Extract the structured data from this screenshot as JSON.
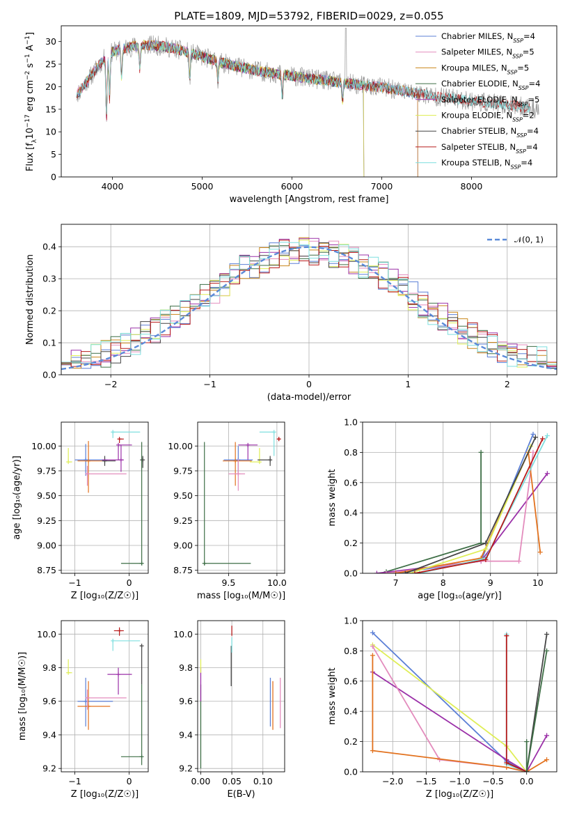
{
  "title": "PLATE=1809, MJD=53792, FIBERID=0029, z=0.055",
  "colors": {
    "Chabrier MILES": "#5b7fd6",
    "Salpeter MILES": "#e38cbd",
    "Kroupa MILES": "#c9861a",
    "Chabrier ELODIE": "#3d6e45",
    "Salpeter ELODIE": "#9b30a8",
    "Kroupa ELODIE": "#dfee56",
    "Chabrier STELIB": "#444444",
    "Salpeter STELIB": "#b81a1a",
    "Kroupa STELIB": "#7edfdf",
    "extra_orange": "#e2711d",
    "normal": "#5b8ad8"
  },
  "chart_data": [
    {
      "type": "line",
      "panel": "spectrum",
      "xlabel": "wavelength [Angstrom, rest frame]",
      "ylabel_parts": [
        "Flux [f",
        "λ",
        "10",
        "−17",
        " erg cm",
        "−2",
        " s",
        "−1",
        " A",
        "−1",
        "]"
      ],
      "xlim": [
        3430,
        8950
      ],
      "ylim": [
        0,
        33.5
      ],
      "xticks": [
        4000,
        5000,
        6000,
        7000,
        8000
      ],
      "yticks": [
        0,
        5,
        10,
        15,
        20,
        25,
        30
      ],
      "legend": [
        {
          "name": "Chabrier MILES",
          "nssp": "4"
        },
        {
          "name": "Salpeter MILES",
          "nssp": "5"
        },
        {
          "name": "Kroupa MILES",
          "nssp": "5"
        },
        {
          "name": "Chabrier ELODIE",
          "nssp": "4"
        },
        {
          "name": "Salpeter ELODIE",
          "nssp": "5"
        },
        {
          "name": "Kroupa ELODIE",
          "nssp": "2"
        },
        {
          "name": "Chabrier STELIB",
          "nssp": "4"
        },
        {
          "name": "Salpeter STELIB",
          "nssp": "4"
        },
        {
          "name": "Kroupa STELIB",
          "nssp": "4"
        }
      ],
      "nssp_label": "N",
      "nssp_sub": "SSP",
      "series_ranges": [
        {
          "name": "Chabrier MILES",
          "x0": 3600,
          "x1": 7400
        },
        {
          "name": "Salpeter MILES",
          "x0": 3600,
          "x1": 7400
        },
        {
          "name": "Kroupa MILES",
          "x0": 3600,
          "x1": 7400
        },
        {
          "name": "Chabrier ELODIE",
          "x0": 4850,
          "x1": 6800
        },
        {
          "name": "Salpeter ELODIE",
          "x0": 3900,
          "x1": 6800
        },
        {
          "name": "Kroupa ELODIE",
          "x0": 3900,
          "x1": 6800
        },
        {
          "name": "Chabrier STELIB",
          "x0": 3600,
          "x1": 8650
        },
        {
          "name": "Salpeter STELIB",
          "x0": 3600,
          "x1": 8650
        },
        {
          "name": "Kroupa STELIB",
          "x0": 3600,
          "x1": 8650
        }
      ],
      "data_series": {
        "name": "data",
        "color": "#999999",
        "x0": 3600,
        "x1": 8750
      }
    },
    {
      "type": "line",
      "panel": "residuals",
      "xlabel": "(data-model)/error",
      "ylabel": "Normed distribution",
      "xlim": [
        -2.5,
        2.5
      ],
      "ylim": [
        0,
        0.47
      ],
      "xticks": [
        -2,
        -1,
        0,
        1,
        2
      ],
      "xtick_labels": [
        "−2",
        "−1",
        "0",
        "1",
        "2"
      ],
      "yticks": [
        0.0,
        0.1,
        0.2,
        0.3,
        0.4
      ],
      "ytick_labels": [
        "0.0",
        "0.1",
        "0.2",
        "0.3",
        "0.4"
      ],
      "legend_label": "𝒩(0, 1)",
      "bin_width": 0.1,
      "normal": {
        "mean": 0,
        "sigma": 1
      }
    },
    {
      "type": "scatter",
      "panel": "age-vs-Z",
      "xlabel": "Z [log₁₀(Z/Z☉)]",
      "ylabel": "age  [log₁₀(age/yr)]",
      "xlim": [
        -1.25,
        0.35
      ],
      "ylim": [
        8.72,
        10.24
      ],
      "xticks": [
        -1,
        0
      ],
      "xtick_labels": [
        "−1",
        "0"
      ],
      "yticks": [
        8.75,
        9.0,
        9.25,
        9.5,
        9.75,
        10.0
      ],
      "ytick_labels": [
        "8.75",
        "9.00",
        "9.25",
        "9.50",
        "9.75",
        "10.00"
      ],
      "points": [
        {
          "s": "Kroupa ELODIE",
          "x": -1.12,
          "y": 9.84,
          "xe": [
            -1.12,
            -1.05
          ],
          "ye": [
            9.84,
            9.98
          ],
          "cap": "l"
        },
        {
          "s": "Chabrier MILES",
          "x": -0.8,
          "y": 9.86,
          "xe": [
            -1.0,
            -0.4
          ],
          "ye": [
            9.7,
            10.02
          ]
        },
        {
          "s": "extra_orange",
          "x": -0.75,
          "y": 9.85,
          "xe": [
            -0.95,
            -0.5
          ],
          "ye": [
            9.53,
            10.05
          ]
        },
        {
          "s": "Salpeter MILES",
          "x": -0.77,
          "y": 9.72,
          "xe": [
            -0.8,
            -0.05
          ],
          "ye": [
            9.6,
            9.8
          ]
        },
        {
          "s": "Chabrier STELIB",
          "x": -0.45,
          "y": 9.85,
          "xe": [
            -0.5,
            -0.25
          ],
          "ye": [
            9.8,
            9.9
          ]
        },
        {
          "s": "Salpeter ELODIE",
          "x": -0.15,
          "y": 9.86,
          "xe": [
            -0.5,
            -0.1
          ],
          "ye": [
            9.74,
            10.01
          ]
        },
        {
          "s": "Salpeter ELODIE",
          "x": -0.2,
          "y": 10.01,
          "xe": [
            -0.2,
            0.05
          ],
          "ye": [
            9.86,
            10.01
          ]
        },
        {
          "s": "Kroupa STELIB",
          "x": -0.3,
          "y": 10.14,
          "xe": [
            -0.3,
            0.2
          ],
          "ye": [
            10.08,
            10.14
          ]
        },
        {
          "s": "Salpeter STELIB",
          "x": -0.18,
          "y": 10.07,
          "xe": [
            -0.18,
            -0.1
          ],
          "ye": [
            10.03,
            10.07
          ]
        },
        {
          "s": "Chabrier STELIB",
          "x": 0.25,
          "y": 9.86,
          "xe": [
            0.2,
            0.26
          ],
          "ye": [
            9.78,
            9.9
          ]
        },
        {
          "s": "Chabrier ELODIE",
          "x": 0.23,
          "y": 8.82,
          "xe": [
            -0.15,
            0.23
          ],
          "ye": [
            8.8,
            10.04
          ]
        }
      ]
    },
    {
      "type": "scatter",
      "panel": "age-vs-mass",
      "xlabel": "mass [log₁₀(M/M☉)]",
      "ylabel": "",
      "xlim": [
        9.18,
        10.08
      ],
      "ylim": [
        8.72,
        10.24
      ],
      "xticks": [
        9.5,
        10.0
      ],
      "xtick_labels": [
        "9.5",
        "10.0"
      ],
      "yticks": [
        8.75,
        9.0,
        9.25,
        9.5,
        9.75,
        10.0
      ],
      "ytick_labels": [
        "8.75",
        "9.00",
        "9.25",
        "9.50",
        "9.75",
        "10.00"
      ],
      "points": [
        {
          "s": "Chabrier ELODIE",
          "x": 9.25,
          "y": 8.82,
          "xe": [
            9.25,
            9.73
          ],
          "ye": [
            8.8,
            10.04
          ]
        },
        {
          "s": "Chabrier MILES",
          "x": 9.6,
          "y": 9.86,
          "xe": [
            9.45,
            9.75
          ],
          "ye": [
            9.72,
            10.0
          ]
        },
        {
          "s": "extra_orange",
          "x": 9.57,
          "y": 9.85,
          "xe": [
            9.44,
            9.74
          ],
          "ye": [
            9.6,
            10.04
          ]
        },
        {
          "s": "Salpeter MILES",
          "x": 9.6,
          "y": 9.72,
          "xe": [
            9.5,
            9.67
          ],
          "ye": [
            9.55,
            9.87
          ]
        },
        {
          "s": "Salpeter ELODIE",
          "x": 9.7,
          "y": 10.01,
          "xe": [
            9.6,
            9.8
          ],
          "ye": [
            9.86,
            10.01
          ]
        },
        {
          "s": "Kroupa ELODIE",
          "x": 9.82,
          "y": 9.84,
          "xe": [
            9.72,
            9.82
          ],
          "ye": [
            9.84,
            9.98
          ]
        },
        {
          "s": "Chabrier STELIB",
          "x": 9.93,
          "y": 9.86,
          "xe": [
            9.8,
            9.94
          ],
          "ye": [
            9.8,
            9.9
          ]
        },
        {
          "s": "Kroupa STELIB",
          "x": 9.97,
          "y": 10.14,
          "xe": [
            9.82,
            9.97
          ],
          "ye": [
            9.9,
            10.14
          ]
        },
        {
          "s": "Salpeter STELIB",
          "x": 10.02,
          "y": 10.07,
          "xe": [
            10.0,
            10.04
          ],
          "ye": [
            10.05,
            10.09
          ]
        }
      ]
    },
    {
      "type": "line",
      "panel": "massweight-vs-age",
      "xlabel": "age  [log₁₀(age/yr)]",
      "ylabel": "mass weight",
      "xlim": [
        6.3,
        10.4
      ],
      "ylim": [
        0,
        1.0
      ],
      "xticks": [
        7,
        8,
        9,
        10
      ],
      "xtick_labels": [
        "7",
        "8",
        "9",
        "10"
      ],
      "yticks": [
        0,
        0.2,
        0.4,
        0.6,
        0.8,
        1.0
      ],
      "ytick_labels": [
        "0.0",
        "0.2",
        "0.4",
        "0.6",
        "0.8",
        "1.0"
      ],
      "series": [
        {
          "s": "Chabrier ELODIE",
          "x": [
            6.8,
            8.8,
            8.8
          ],
          "y": [
            0.01,
            0.2,
            0.8
          ]
        },
        {
          "s": "Chabrier MILES",
          "x": [
            7.0,
            8.8,
            9.9
          ],
          "y": [
            0.0,
            0.08,
            0.92
          ]
        },
        {
          "s": "Salpeter ELODIE",
          "x": [
            6.6,
            8.8,
            10.2
          ],
          "y": [
            0.0,
            0.08,
            0.66
          ]
        },
        {
          "s": "Salpeter MILES",
          "x": [
            6.8,
            8.8,
            9.6,
            9.9
          ],
          "y": [
            0.0,
            0.08,
            0.08,
            0.8
          ]
        },
        {
          "s": "extra_orange",
          "x": [
            7.0,
            8.8,
            9.8,
            10.05
          ],
          "y": [
            0.0,
            0.1,
            0.8,
            0.14
          ]
        },
        {
          "s": "Kroupa ELODIE",
          "x": [
            7.3,
            8.9,
            9.85
          ],
          "y": [
            0.0,
            0.16,
            0.84
          ]
        },
        {
          "s": "Chabrier STELIB",
          "x": [
            7.2,
            8.9,
            9.95
          ],
          "y": [
            0.0,
            0.2,
            0.9
          ]
        },
        {
          "s": "Kroupa STELIB",
          "x": [
            7.5,
            8.9,
            10.2
          ],
          "y": [
            0.0,
            0.1,
            0.91
          ]
        },
        {
          "s": "Salpeter STELIB",
          "x": [
            7.4,
            8.9,
            10.1
          ],
          "y": [
            0.0,
            0.09,
            0.89
          ]
        }
      ]
    },
    {
      "type": "scatter",
      "panel": "mass-vs-Z",
      "xlabel": "Z [log₁₀(Z/Z☉)]",
      "ylabel": "mass [log₁₀(M/M☉)]",
      "xlim": [
        -1.25,
        0.35
      ],
      "ylim": [
        9.18,
        10.08
      ],
      "xticks": [
        -1,
        0
      ],
      "xtick_labels": [
        "−1",
        "0"
      ],
      "yticks": [
        9.2,
        9.4,
        9.6,
        9.8,
        10.0
      ],
      "ytick_labels": [
        "9.2",
        "9.4",
        "9.6",
        "9.8",
        "10.0"
      ],
      "points": [
        {
          "s": "Kroupa ELODIE",
          "x": -1.12,
          "y": 9.77,
          "xe": [
            -1.12,
            -1.05
          ],
          "ye": [
            9.77,
            9.85
          ],
          "cap": "l"
        },
        {
          "s": "Chabrier MILES",
          "x": -0.8,
          "y": 9.6,
          "xe": [
            -0.95,
            -0.3
          ],
          "ye": [
            9.45,
            9.74
          ]
        },
        {
          "s": "extra_orange",
          "x": -0.75,
          "y": 9.57,
          "xe": [
            -0.95,
            -0.35
          ],
          "ye": [
            9.43,
            9.72
          ]
        },
        {
          "s": "Salpeter MILES",
          "x": -0.77,
          "y": 9.62,
          "xe": [
            -0.8,
            -0.05
          ],
          "ye": [
            9.55,
            9.67
          ]
        },
        {
          "s": "Salpeter ELODIE",
          "x": -0.2,
          "y": 9.76,
          "xe": [
            -0.4,
            0.05
          ],
          "ye": [
            9.64,
            9.8
          ]
        },
        {
          "s": "Chabrier STELIB",
          "x": 0.23,
          "y": 9.93,
          "xe": [
            0.2,
            0.24
          ],
          "ye": [
            9.7,
            9.93
          ]
        },
        {
          "s": "Kroupa STELIB",
          "x": -0.3,
          "y": 9.96,
          "xe": [
            -0.3,
            0.2
          ],
          "ye": [
            9.9,
            9.96
          ]
        },
        {
          "s": "Salpeter STELIB",
          "x": -0.18,
          "y": 10.02,
          "xe": [
            -0.28,
            -0.1
          ],
          "ye": [
            9.99,
            10.04
          ]
        },
        {
          "s": "Chabrier ELODIE",
          "x": 0.23,
          "y": 9.27,
          "xe": [
            -0.15,
            0.23
          ],
          "ye": [
            9.22,
            9.7
          ]
        }
      ]
    },
    {
      "type": "scatter",
      "panel": "mass-vs-EBV",
      "xlabel": "E(B-V)",
      "ylabel": "",
      "xlim": [
        -0.005,
        0.135
      ],
      "ylim": [
        9.18,
        10.08
      ],
      "xticks": [
        0.0,
        0.05,
        0.1
      ],
      "xtick_labels": [
        "0.00",
        "0.05",
        "0.10"
      ],
      "yticks": [
        9.2,
        9.4,
        9.6,
        9.8,
        10.0
      ],
      "ytick_labels": [
        "9.2",
        "9.4",
        "9.6",
        "9.8",
        "10.0"
      ],
      "vbars": [
        {
          "s": "Chabrier ELODIE",
          "x": 0.0,
          "y0": 9.2,
          "y1": 9.7
        },
        {
          "s": "Salpeter ELODIE",
          "x": 0.0,
          "y0": 9.6,
          "y1": 9.8
        },
        {
          "s": "Kroupa ELODIE",
          "x": 0.0,
          "y0": 9.77,
          "y1": 9.85
        },
        {
          "s": "Chabrier STELIB",
          "x": 0.049,
          "y0": 9.69,
          "y1": 9.93
        },
        {
          "s": "Kroupa STELIB",
          "x": 0.05,
          "y0": 9.89,
          "y1": 9.98
        },
        {
          "s": "Salpeter STELIB",
          "x": 0.05,
          "y0": 9.99,
          "y1": 10.05
        },
        {
          "s": "Chabrier MILES",
          "x": 0.112,
          "y0": 9.45,
          "y1": 9.74
        },
        {
          "s": "extra_orange",
          "x": 0.116,
          "y0": 9.43,
          "y1": 9.72
        },
        {
          "s": "Salpeter MILES",
          "x": 0.128,
          "y0": 9.44,
          "y1": 9.74
        }
      ]
    },
    {
      "type": "line",
      "panel": "massweight-vs-Z",
      "xlabel": "Z [log₁₀(Z/Z☉)]",
      "ylabel": "mass weight",
      "xlim": [
        -2.45,
        0.45
      ],
      "ylim": [
        0,
        1.0
      ],
      "xticks": [
        -2.0,
        -1.5,
        -1.0,
        -0.5,
        0.0
      ],
      "xtick_labels": [
        "−2.0",
        "−1.5",
        "−1.0",
        "−0.5",
        "0.0"
      ],
      "yticks": [
        0,
        0.2,
        0.4,
        0.6,
        0.8,
        1.0
      ],
      "ytick_labels": [
        "0.0",
        "0.2",
        "0.4",
        "0.6",
        "0.8",
        "1.0"
      ],
      "series": [
        {
          "s": "Chabrier MILES",
          "x": [
            -2.3,
            -0.3,
            0.0
          ],
          "y": [
            0.92,
            0.07,
            0.0
          ]
        },
        {
          "s": "Kroupa ELODIE",
          "x": [
            -2.3,
            -0.3,
            0.0
          ],
          "y": [
            0.84,
            0.17,
            0.0
          ]
        },
        {
          "s": "Salpeter ELODIE",
          "x": [
            -2.3,
            -0.3,
            0.0,
            0.3
          ],
          "y": [
            0.66,
            0.08,
            0.0,
            0.24
          ]
        },
        {
          "s": "Salpeter MILES",
          "x": [
            -2.3,
            -1.3,
            -0.3,
            0.0
          ],
          "y": [
            0.83,
            0.08,
            0.03,
            0.0
          ]
        },
        {
          "s": "extra_orange",
          "x": [
            -2.3,
            -2.3,
            -0.3,
            0.0,
            0.3
          ],
          "y": [
            0.77,
            0.14,
            0.03,
            0.0,
            0.08
          ]
        },
        {
          "s": "Kroupa STELIB",
          "x": [
            -0.3,
            -0.3,
            0.0
          ],
          "y": [
            0.91,
            0.05,
            0.0
          ]
        },
        {
          "s": "Salpeter STELIB",
          "x": [
            -0.3,
            -0.3,
            0.0
          ],
          "y": [
            0.9,
            0.06,
            0.0
          ]
        },
        {
          "s": "Chabrier STELIB",
          "x": [
            0.0,
            0.3
          ],
          "y": [
            0.0,
            0.91
          ]
        },
        {
          "s": "Chabrier ELODIE",
          "x": [
            0.0,
            0.0,
            0.3
          ],
          "y": [
            0.2,
            0.0,
            0.8
          ]
        }
      ]
    }
  ]
}
